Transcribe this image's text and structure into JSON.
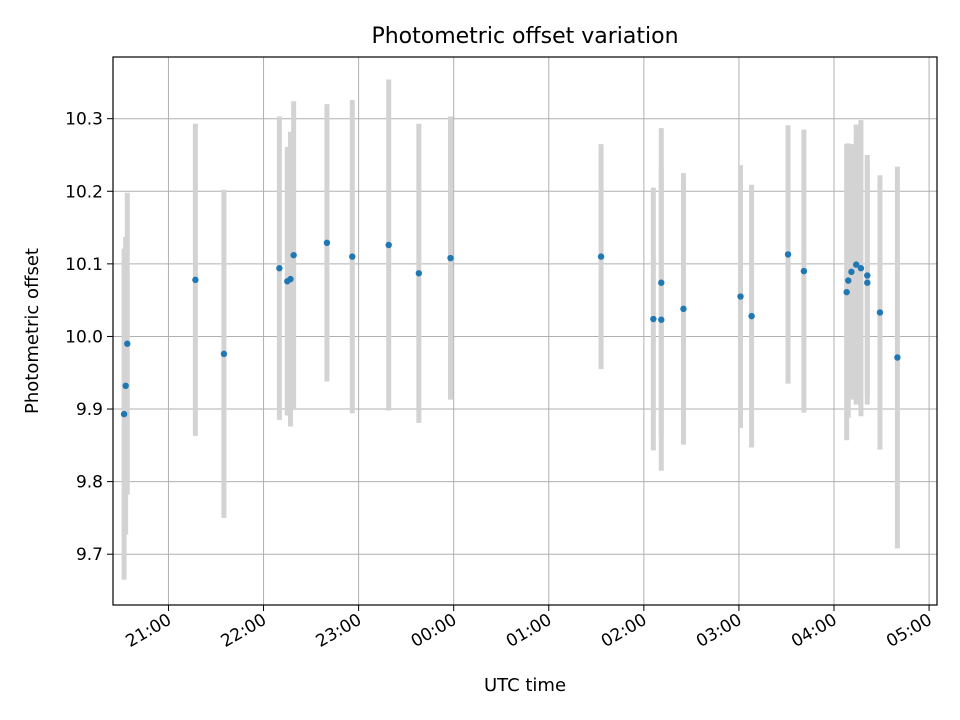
{
  "chart_data": {
    "type": "scatter",
    "title": "Photometric offset variation",
    "xlabel": "UTC time",
    "ylabel": "Photometric offset",
    "x_ticks": [
      "21:00",
      "22:00",
      "23:00",
      "00:00",
      "01:00",
      "02:00",
      "03:00",
      "04:00",
      "05:00"
    ],
    "y_ticks": [
      "9.7",
      "9.8",
      "9.9",
      "10.0",
      "10.1",
      "10.2",
      "10.3"
    ],
    "y_tick_values": [
      9.7,
      9.8,
      9.9,
      10.0,
      10.1,
      10.2,
      10.3
    ],
    "xlim": [
      "20:25",
      "05:05"
    ],
    "ylim": [
      9.63,
      10.385
    ],
    "grid": true,
    "colors": {
      "points": "#1f77b4",
      "error_bars": "#d3d3d3",
      "grid": "#b0b0b0"
    },
    "points": [
      {
        "t": "20:32",
        "y": 9.893,
        "err": 0.228
      },
      {
        "t": "20:33",
        "y": 9.932,
        "err": 0.205
      },
      {
        "t": "20:34",
        "y": 9.99,
        "err": 0.208
      },
      {
        "t": "21:17",
        "y": 10.078,
        "err": 0.215
      },
      {
        "t": "21:35",
        "y": 9.976,
        "err": 0.226
      },
      {
        "t": "22:10",
        "y": 10.094,
        "err": 0.209
      },
      {
        "t": "22:15",
        "y": 10.076,
        "err": 0.185
      },
      {
        "t": "22:17",
        "y": 10.079,
        "err": 0.203
      },
      {
        "t": "22:19",
        "y": 10.112,
        "err": 0.212
      },
      {
        "t": "22:40",
        "y": 10.129,
        "err": 0.191
      },
      {
        "t": "22:56",
        "y": 10.11,
        "err": 0.216
      },
      {
        "t": "23:19",
        "y": 10.126,
        "err": 0.228
      },
      {
        "t": "23:38",
        "y": 10.087,
        "err": 0.206
      },
      {
        "t": "23:58",
        "y": 10.108,
        "err": 0.195
      },
      {
        "t": "01:33",
        "y": 10.11,
        "err": 0.155
      },
      {
        "t": "02:06",
        "y": 10.024,
        "err": 0.181
      },
      {
        "t": "02:11",
        "y": 10.074,
        "err": 0.213
      },
      {
        "t": "02:11",
        "y": 10.023,
        "err": 0.208
      },
      {
        "t": "02:25",
        "y": 10.038,
        "err": 0.187
      },
      {
        "t": "03:01",
        "y": 10.055,
        "err": 0.181
      },
      {
        "t": "03:08",
        "y": 10.028,
        "err": 0.181
      },
      {
        "t": "03:31",
        "y": 10.113,
        "err": 0.178
      },
      {
        "t": "03:41",
        "y": 10.09,
        "err": 0.195
      },
      {
        "t": "04:08",
        "y": 10.061,
        "err": 0.204
      },
      {
        "t": "04:09",
        "y": 10.077,
        "err": 0.189
      },
      {
        "t": "04:11",
        "y": 10.089,
        "err": 0.176
      },
      {
        "t": "04:14",
        "y": 10.099,
        "err": 0.193
      },
      {
        "t": "04:17",
        "y": 10.094,
        "err": 0.204
      },
      {
        "t": "04:21",
        "y": 10.084,
        "err": 0.166
      },
      {
        "t": "04:21",
        "y": 10.074,
        "err": 0.168
      },
      {
        "t": "04:29",
        "y": 10.033,
        "err": 0.189
      },
      {
        "t": "04:40",
        "y": 9.971,
        "err": 0.263
      }
    ]
  }
}
